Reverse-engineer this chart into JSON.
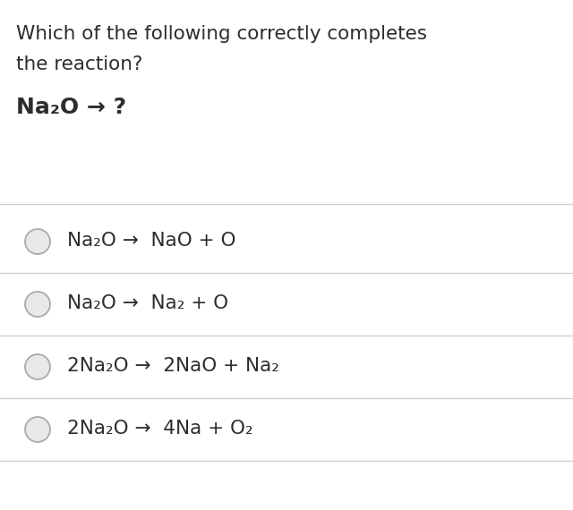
{
  "background_color": "#ffffff",
  "question_line1": "Which of the following correctly completes",
  "question_line2": "the reaction?",
  "reaction": "Na₂O → ?",
  "options": [
    "Na₂O →  NaO + O",
    "Na₂O →  Na₂ + O",
    "2Na₂O →  2NaO + Na₂",
    "2Na₂O →  4Na + O₂"
  ],
  "text_color": "#2d2d2d",
  "line_color": "#d0d0d0",
  "circle_edge_color": "#aaaaaa",
  "circle_face_color": "#e8e8e8",
  "question_fontsize": 15.5,
  "reaction_fontsize": 18,
  "option_fontsize": 15.5,
  "fig_width": 6.4,
  "fig_height": 5.7
}
